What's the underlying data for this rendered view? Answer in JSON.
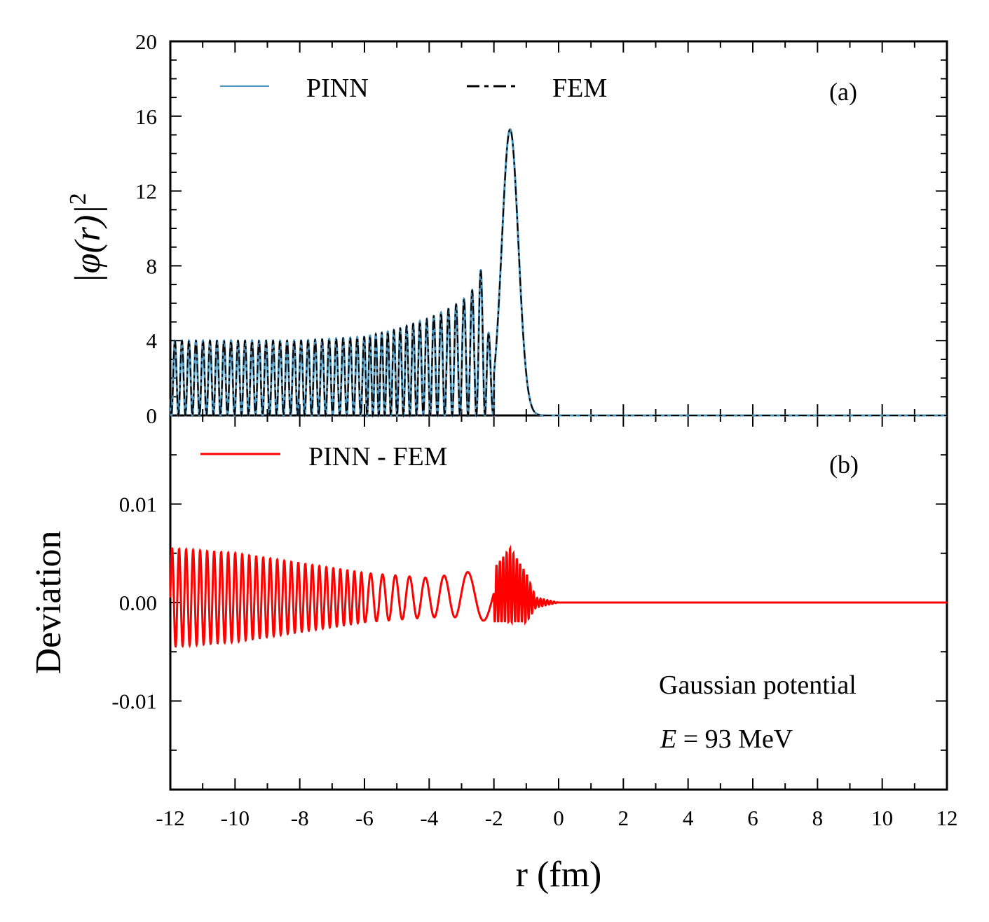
{
  "chart_data": [
    {
      "type": "line",
      "panel": "(a)",
      "ylabel": "|φ(r)|",
      "ylabel_sup": "2",
      "xlim": [
        -12,
        12
      ],
      "ylim": [
        0,
        20
      ],
      "yticks": [
        "0",
        "4",
        "8",
        "12",
        "16",
        "20"
      ],
      "legend_position": "top",
      "series": [
        {
          "name": "PINN",
          "color": "#4a90b8",
          "style": "solid",
          "description_points": {
            "x": [
              -12,
              -10,
              -8,
              -6,
              -5,
              -4,
              -3.5,
              -3,
              -2.5,
              -2.3,
              -2,
              -1.5,
              -1,
              -0.5,
              0
            ],
            "peaks": [
              4.0,
              4.0,
              4.0,
              4.2,
              4.6,
              5.2,
              5.6,
              6.1,
              7.0,
              8.7,
              0.0,
              15.3,
              4.0,
              0.3,
              0.0
            ]
          }
        },
        {
          "name": "FEM",
          "color": "#000000",
          "style": "dashed"
        }
      ]
    },
    {
      "type": "line",
      "panel": "(b)",
      "ylabel": "Deviation",
      "xlabel": "r (fm)",
      "xlim": [
        -12,
        12
      ],
      "ylim": [
        -0.019,
        0.019
      ],
      "yticks": [
        "-0.01",
        "0.00",
        "0.01"
      ],
      "xticks": [
        "-12",
        "-10",
        "-8",
        "-6",
        "-4",
        "-2",
        "0",
        "2",
        "4",
        "6",
        "8",
        "10",
        "12"
      ],
      "series": [
        {
          "name": "PINN - FEM",
          "color": "#ff0000",
          "style": "solid",
          "amplitude_envelope": {
            "x": [
              -12,
              -10,
              -8,
              -6,
              -4,
              -3,
              -2,
              -1.5,
              -1,
              -0.7,
              0,
              12
            ],
            "upper": [
              0.0055,
              0.005,
              0.004,
              0.003,
              0.0025,
              0.003,
              0.0035,
              0.0055,
              0.003,
              0.0005,
              0.0,
              0.0
            ],
            "lower": [
              -0.0045,
              -0.004,
              -0.003,
              -0.002,
              -0.0015,
              -0.0015,
              -0.002,
              -0.002,
              -0.002,
              -0.0005,
              0.0,
              0.0
            ]
          }
        }
      ],
      "annotations": [
        "Gaussian potential",
        "E = 93 MeV"
      ]
    }
  ],
  "legend": {
    "pinn": "PINN",
    "fem": "FEM",
    "diff": "PINN - FEM"
  },
  "labels": {
    "panel_a": "(a)",
    "panel_b": "(b)",
    "xlabel": "r (fm)",
    "ylabel_top": "|φ(r)|",
    "ylabel_top_sup": "2",
    "ylabel_bottom": "Deviation",
    "annot_line1": "Gaussian potential",
    "annot_line2_E": "E",
    "annot_line2_rest": " = 93 MeV"
  }
}
